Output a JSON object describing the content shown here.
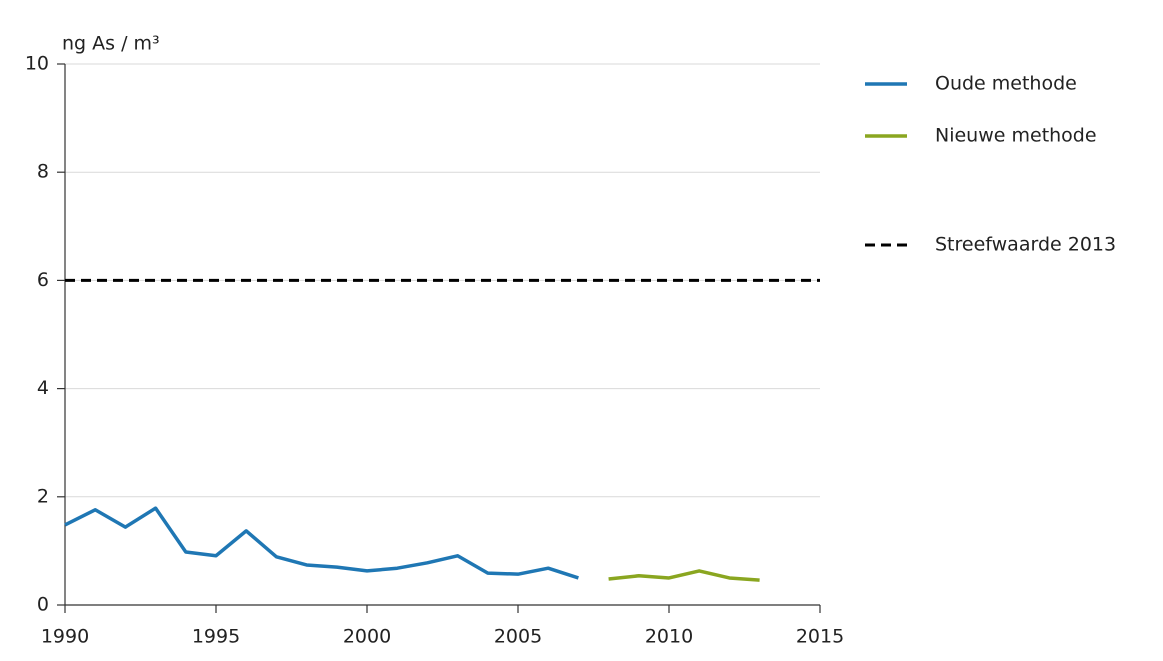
{
  "chart_data": {
    "type": "line",
    "y_label": "ng As / m³",
    "x": [
      1990,
      1991,
      1992,
      1993,
      1994,
      1995,
      1996,
      1997,
      1998,
      1999,
      2000,
      2001,
      2002,
      2003,
      2004,
      2005,
      2006,
      2007,
      2008,
      2009,
      2010,
      2011,
      2012,
      2013
    ],
    "series": [
      {
        "name": "Oude methode",
        "color": "#1f77b4",
        "values": [
          1.48,
          1.76,
          1.44,
          1.79,
          0.98,
          0.91,
          1.37,
          0.89,
          0.74,
          0.7,
          0.63,
          0.68,
          0.78,
          0.91,
          0.59,
          0.57,
          0.68,
          0.5,
          null,
          null,
          null,
          null,
          null,
          null
        ]
      },
      {
        "name": "Nieuwe methode",
        "color": "#8aa620",
        "values": [
          null,
          null,
          null,
          null,
          null,
          null,
          null,
          null,
          null,
          null,
          null,
          null,
          null,
          null,
          null,
          null,
          null,
          null,
          0.48,
          0.54,
          0.5,
          0.63,
          0.5,
          0.46
        ]
      }
    ],
    "reference_line": {
      "name": "Streefwaarde 2013",
      "value": 6,
      "color": "#000000",
      "style": "dashed"
    },
    "xlim": [
      1990,
      2015
    ],
    "xticks": [
      1990,
      1995,
      2000,
      2005,
      2010,
      2015
    ],
    "ylim": [
      0,
      10
    ],
    "yticks": [
      0,
      2,
      4,
      6,
      8,
      10
    ],
    "grid": true,
    "legend": "right"
  }
}
